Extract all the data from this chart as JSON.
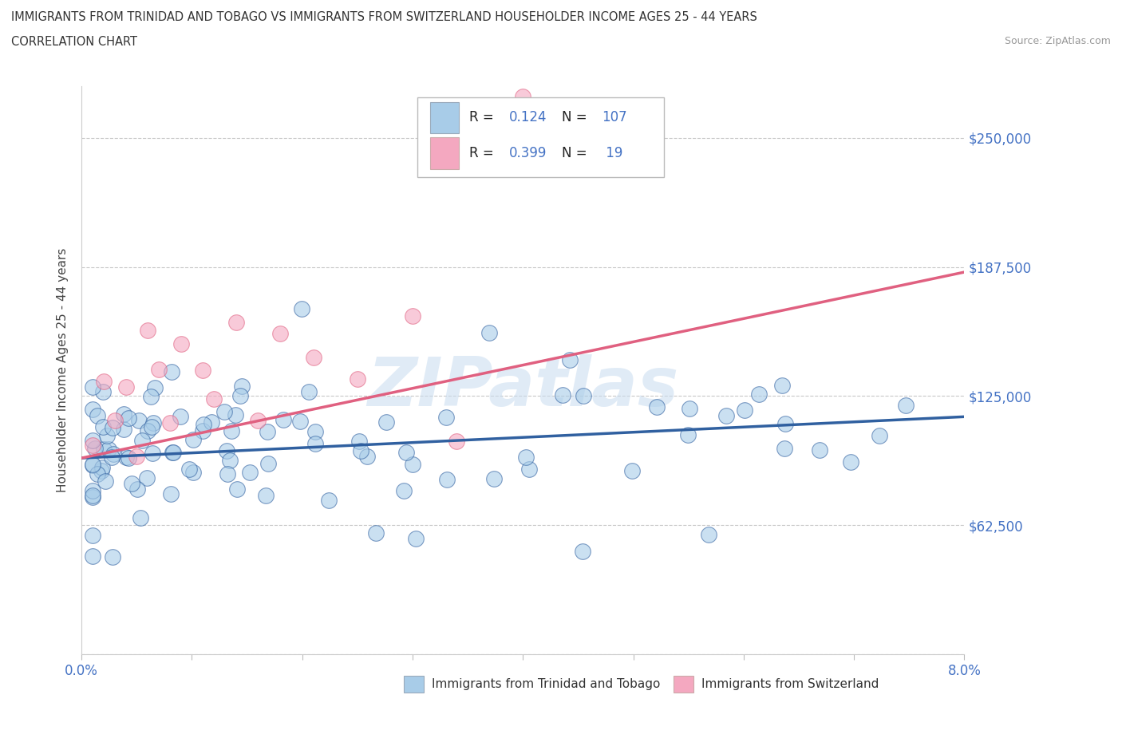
{
  "title_line1": "IMMIGRANTS FROM TRINIDAD AND TOBAGO VS IMMIGRANTS FROM SWITZERLAND HOUSEHOLDER INCOME AGES 25 - 44 YEARS",
  "title_line2": "CORRELATION CHART",
  "source_text": "Source: ZipAtlas.com",
  "ylabel": "Householder Income Ages 25 - 44 years",
  "xlim": [
    0.0,
    0.08
  ],
  "ylim": [
    0,
    275000
  ],
  "ytick_vals": [
    0,
    62500,
    125000,
    187500,
    250000
  ],
  "ytick_labels_right": [
    "",
    "$62,500",
    "$125,000",
    "$187,500",
    "$250,000"
  ],
  "xtick_vals": [
    0.0,
    0.01,
    0.02,
    0.03,
    0.04,
    0.05,
    0.06,
    0.07,
    0.08
  ],
  "xtick_labels": [
    "0.0%",
    "",
    "",
    "",
    "",
    "",
    "",
    "",
    "8.0%"
  ],
  "color_blue": "#A8CCE8",
  "color_pink": "#F4A8C0",
  "color_blue_line": "#3060A0",
  "color_pink_line": "#E06080",
  "color_axis_text": "#4472C4",
  "color_legend_text_black": "#222222",
  "R_blue": 0.124,
  "N_blue": 107,
  "R_pink": 0.399,
  "N_pink": 19,
  "watermark": "ZIPatlas",
  "bg_color": "#FFFFFF",
  "grid_color": "#C8C8C8",
  "legend_label_blue": "Immigrants from Trinidad and Tobago",
  "legend_label_pink": "Immigrants from Switzerland",
  "blue_line_y0": 95000,
  "blue_line_y1": 115000,
  "pink_line_y0": 95000,
  "pink_line_y1": 185000
}
